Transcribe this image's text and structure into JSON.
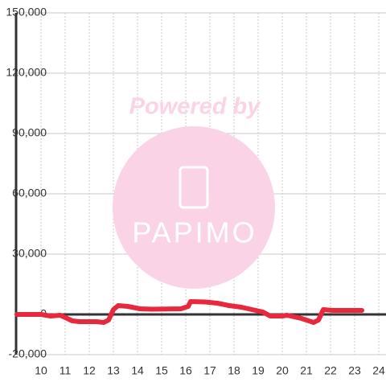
{
  "chart_data": {
    "type": "line",
    "watermark": {
      "top": "Powered by",
      "logo": "PAPIMO"
    },
    "xlim": [
      9,
      24.3
    ],
    "xticks": [
      10,
      11,
      12,
      13,
      14,
      15,
      16,
      17,
      18,
      19,
      20,
      21,
      22,
      23,
      24
    ],
    "ylim": [
      -20000,
      150000
    ],
    "yticks": [
      {
        "value": -20000,
        "label": "-20,000"
      },
      0,
      {
        "value": 30000,
        "label": "30,000"
      },
      {
        "value": 60000,
        "label": "60,000"
      },
      {
        "value": 90000,
        "label": "90,000"
      },
      {
        "value": 120000,
        "label": "120,000"
      },
      {
        "value": 150000,
        "label": "150,000"
      }
    ],
    "grid": true,
    "series": [
      {
        "color": "#e8283c",
        "x": [
          9.0,
          10.0,
          10.4,
          10.8,
          11.3,
          11.6,
          12.3,
          12.6,
          12.8,
          13.0,
          13.2,
          13.6,
          14.1,
          14.6,
          15.8,
          16.1,
          16.2,
          16.8,
          17.3,
          17.8,
          18.3,
          18.6,
          19.2,
          19.5,
          20.0,
          20.2,
          20.8,
          21.3,
          21.5,
          21.7,
          22.1,
          23.3
        ],
        "values": [
          0,
          0,
          -800,
          -400,
          -3200,
          -3600,
          -3600,
          -4000,
          -2800,
          2400,
          4400,
          4000,
          2800,
          2600,
          2800,
          4000,
          6400,
          6200,
          5600,
          4400,
          3600,
          2800,
          1200,
          -800,
          -800,
          -400,
          -2000,
          -4000,
          -2800,
          2400,
          2000,
          2000
        ]
      }
    ]
  }
}
